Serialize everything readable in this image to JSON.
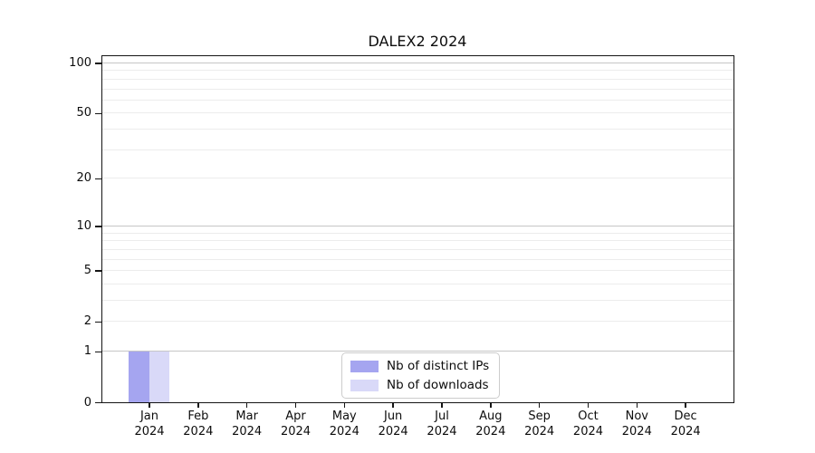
{
  "figure": {
    "title": "DALEX2 2024"
  },
  "chart_data": {
    "type": "bar",
    "title": "DALEX2 2024",
    "categories": [
      "Jan",
      "Feb",
      "Mar",
      "Apr",
      "May",
      "Jun",
      "Jul",
      "Aug",
      "Sep",
      "Oct",
      "Nov",
      "Dec"
    ],
    "category_year": "2024",
    "series": [
      {
        "name": "Nb of distinct IPs",
        "color": "#a5a5f0",
        "values": [
          1,
          0,
          0,
          0,
          0,
          0,
          0,
          0,
          0,
          0,
          0,
          0
        ]
      },
      {
        "name": "Nb of downloads",
        "color": "#d9d9f8",
        "values": [
          1,
          0,
          0,
          0,
          0,
          0,
          0,
          0,
          0,
          0,
          0,
          0
        ]
      }
    ],
    "y_axis": {
      "scale": "log1p",
      "tick_values": [
        0,
        1,
        2,
        5,
        10,
        20,
        50,
        100
      ],
      "major_grid_values": [
        1,
        10,
        100
      ],
      "minor_grid_values": [
        2,
        3,
        4,
        5,
        6,
        7,
        8,
        9,
        20,
        30,
        40,
        50,
        60,
        70,
        80,
        90
      ],
      "ylim": [
        0,
        100
      ]
    },
    "legend": {
      "position": "lower center",
      "entries": [
        "Nb of distinct IPs",
        "Nb of downloads"
      ]
    },
    "grid": true
  },
  "colors": {
    "grid_minor": "#ececec",
    "grid_major": "#c6c6c6",
    "axis": "#151515",
    "legend_border": "#cccccc",
    "background": "#ffffff"
  }
}
